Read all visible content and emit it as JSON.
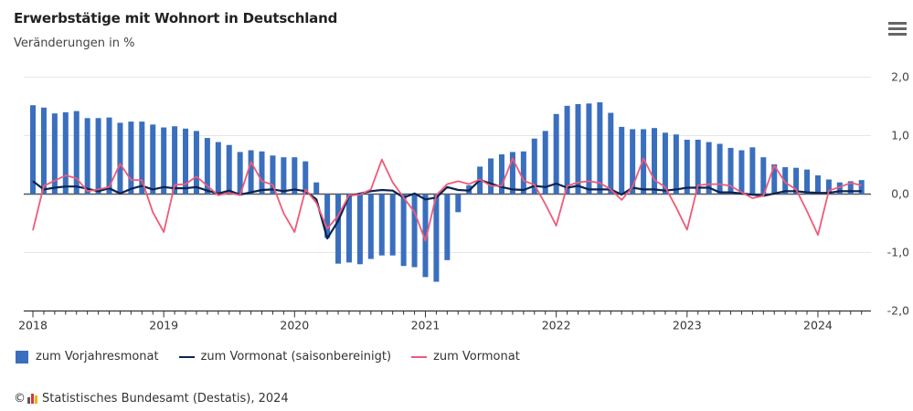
{
  "header": {
    "title": "Erwerbstätige mit Wohnort in Deutschland",
    "subtitle": "Veränderungen in %",
    "menu_icon": "hamburger-menu-icon"
  },
  "legend": [
    {
      "label": "zum Vorjahresmonat",
      "symbol": "box",
      "color": "#3a6fbe"
    },
    {
      "label": "zum Vormonat (saisonbereinigt)",
      "symbol": "line",
      "color": "#0d2350"
    },
    {
      "label": "zum Vormonat",
      "symbol": "line",
      "color": "#f05a78"
    }
  ],
  "credits": {
    "copyright_symbol": "©",
    "logo_icon": "destatis-logo-icon",
    "text": "Statistisches Bundesamt (Destatis), 2024"
  },
  "chart_data": {
    "type": "bar+line",
    "title": "Erwerbstätige mit Wohnort in Deutschland",
    "subtitle": "Veränderungen in %",
    "xlabel": "",
    "ylabel": "",
    "x_start": "2018-01",
    "x_end": "2024-05",
    "x_tick_labels": [
      "2018",
      "2019",
      "2020",
      "2021",
      "2022",
      "2023",
      "2024"
    ],
    "y_tick_labels": [
      "2,0",
      "1,0",
      "0,0",
      "-1,0",
      "-2,0"
    ],
    "y_ticks": [
      2,
      1,
      0,
      -1,
      -2
    ],
    "ylim": [
      -2,
      2
    ],
    "y_axis_side": "right",
    "grid": true,
    "legend_position": "bottom-left",
    "series": [
      {
        "name": "zum Vorjahresmonat",
        "type": "bar",
        "color": "#3a6fbe",
        "values": [
          1.52,
          1.48,
          1.38,
          1.4,
          1.42,
          1.3,
          1.3,
          1.31,
          1.22,
          1.24,
          1.24,
          1.19,
          1.14,
          1.16,
          1.12,
          1.08,
          0.96,
          0.89,
          0.84,
          0.72,
          0.75,
          0.73,
          0.66,
          0.63,
          0.63,
          0.56,
          0.2,
          -0.75,
          -1.19,
          -1.17,
          -1.2,
          -1.11,
          -1.05,
          -1.05,
          -1.23,
          -1.25,
          -1.42,
          -1.5,
          -1.13,
          -0.31,
          0.15,
          0.47,
          0.61,
          0.68,
          0.72,
          0.73,
          0.95,
          1.08,
          1.37,
          1.51,
          1.54,
          1.55,
          1.57,
          1.39,
          1.15,
          1.11,
          1.11,
          1.13,
          1.05,
          1.02,
          0.93,
          0.93,
          0.89,
          0.86,
          0.79,
          0.75,
          0.8,
          0.63,
          0.51,
          0.46,
          0.45,
          0.42,
          0.32,
          0.25,
          0.2,
          0.22,
          0.24
        ]
      },
      {
        "name": "zum Vormonat (saisonbereinigt)",
        "type": "line",
        "color": "#0d2350",
        "values": [
          0.22,
          0.08,
          0.11,
          0.13,
          0.13,
          0.09,
          0.05,
          0.1,
          0.01,
          0.09,
          0.14,
          0.08,
          0.12,
          0.1,
          0.1,
          0.12,
          0.06,
          0.01,
          0.06,
          -0.01,
          0.03,
          0.07,
          0.08,
          0.05,
          0.08,
          0.05,
          -0.09,
          -0.76,
          -0.46,
          -0.03,
          0.01,
          0.05,
          0.07,
          0.06,
          -0.06,
          0.01,
          -0.09,
          -0.06,
          0.12,
          0.07,
          0.06,
          0.24,
          0.18,
          0.12,
          0.08,
          0.07,
          0.14,
          0.12,
          0.18,
          0.11,
          0.14,
          0.08,
          0.08,
          0.08,
          -0.01,
          0.11,
          0.08,
          0.08,
          0.06,
          0.08,
          0.11,
          0.11,
          0.11,
          0.03,
          0.03,
          0.01,
          -0.01,
          -0.03,
          0.01,
          0.05,
          0.05,
          0.03,
          0.02,
          0.02,
          0.05,
          0.05,
          0.05
        ]
      },
      {
        "name": "zum Vormonat",
        "type": "line",
        "color": "#f05a78",
        "values": [
          -0.62,
          0.14,
          0.23,
          0.32,
          0.27,
          0.05,
          0.08,
          0.12,
          0.52,
          0.24,
          0.24,
          -0.31,
          -0.65,
          0.16,
          0.17,
          0.3,
          0.14,
          -0.02,
          0.02,
          -0.02,
          0.55,
          0.22,
          0.16,
          -0.33,
          -0.65,
          0.08,
          -0.15,
          -0.59,
          -0.37,
          -0.02,
          -0.01,
          0.08,
          0.59,
          0.2,
          -0.06,
          -0.31,
          -0.8,
          -0.02,
          0.17,
          0.22,
          0.17,
          0.25,
          0.14,
          0.14,
          0.61,
          0.23,
          0.16,
          -0.17,
          -0.54,
          0.14,
          0.2,
          0.22,
          0.19,
          0.08,
          -0.1,
          0.12,
          0.61,
          0.24,
          0.12,
          -0.23,
          -0.61,
          0.15,
          0.17,
          0.17,
          0.14,
          0.03,
          -0.07,
          -0.03,
          0.49,
          0.2,
          0.08,
          -0.29,
          -0.7,
          0.06,
          0.12,
          0.19,
          0.15
        ]
      }
    ]
  }
}
